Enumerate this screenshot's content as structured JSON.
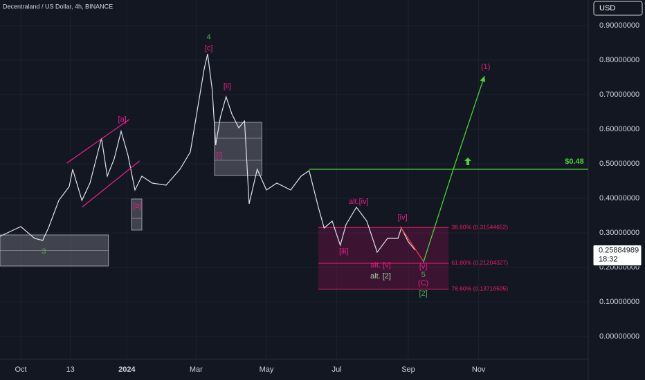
{
  "chart_data": {
    "type": "line",
    "title": "Decentraland / US Dollar, 4h, BINANCE",
    "currency": "USD",
    "last_price": {
      "value": 0.25884989,
      "label": "0.25884989"
    },
    "countdown": "18:32",
    "color": "#e0e3eb",
    "xlim": [
      -18,
      492
    ],
    "ylim": [
      -0.066,
      0.974
    ],
    "xticks": [
      {
        "value": 0,
        "label": "Oct"
      },
      {
        "value": 43,
        "label": "13"
      },
      {
        "value": 92,
        "label": "2024"
      },
      {
        "value": 152,
        "label": "Mar"
      },
      {
        "value": 213,
        "label": "May"
      },
      {
        "value": 274,
        "label": "Jul"
      },
      {
        "value": 336,
        "label": "Sep"
      },
      {
        "value": 397,
        "label": "Nov"
      }
    ],
    "yticks": [
      {
        "value": 0,
        "label": "0.00000000"
      },
      {
        "value": 0.1,
        "label": "0.10000000"
      },
      {
        "value": 0.2,
        "label": "0.20000000"
      },
      {
        "value": 0.3,
        "label": "0.30000000"
      },
      {
        "value": 0.4,
        "label": "0.40000000"
      },
      {
        "value": 0.5,
        "label": "0.50000000"
      },
      {
        "value": 0.6,
        "label": "0.60000000"
      },
      {
        "value": 0.7,
        "label": "0.70000000"
      },
      {
        "value": 0.8,
        "label": "0.80000000"
      },
      {
        "value": 0.9,
        "label": "0.90000000"
      }
    ],
    "series": [
      {
        "color": "#e0e3eb",
        "x": [
          -18,
          0,
          12,
          19,
          24,
          33,
          42,
          45,
          53,
          60,
          70,
          75,
          81,
          87,
          93,
          99,
          105,
          114,
          126,
          138,
          147,
          155,
          159,
          162,
          166,
          169,
          173,
          178,
          183,
          189,
          194,
          198,
          205,
          213,
          222,
          234,
          243,
          250,
          258,
          263,
          270,
          277,
          282,
          291,
          300,
          309,
          318,
          327,
          330,
          336,
          342
        ],
        "values": [
          0.29,
          0.318,
          0.284,
          0.278,
          0.314,
          0.394,
          0.434,
          0.484,
          0.394,
          0.444,
          0.574,
          0.464,
          0.514,
          0.594,
          0.524,
          0.424,
          0.464,
          0.444,
          0.438,
          0.484,
          0.534,
          0.694,
          0.774,
          0.818,
          0.714,
          0.554,
          0.634,
          0.694,
          0.644,
          0.604,
          0.624,
          0.384,
          0.484,
          0.424,
          0.444,
          0.424,
          0.464,
          0.48,
          0.374,
          0.314,
          0.334,
          0.264,
          0.324,
          0.374,
          0.334,
          0.244,
          0.284,
          0.284,
          0.314,
          0.274,
          0.25
        ]
      }
    ],
    "fib_range": [
      258,
      371
    ],
    "fib_levels": [
      {
        "value": 0.31544652,
        "label": "38.60% (0.31544652)"
      },
      {
        "value": 0.21204327,
        "label": "61.80% (0.21204327)"
      },
      {
        "value": 0.13716505,
        "label": "78.60% (0.13716505)"
      }
    ],
    "zones": [
      {
        "x": [
          -18,
          76
        ],
        "y": [
          0.204,
          0.294
        ],
        "lines": [
          0.249
        ]
      },
      {
        "x": [
          168,
          209
        ],
        "y": [
          0.466,
          0.62
        ],
        "lines": [
          0.574,
          0.51
        ]
      },
      {
        "x": [
          96,
          105
        ],
        "y": [
          0.308,
          0.398
        ],
        "lines": [
          0.342
        ]
      }
    ],
    "lines": [
      {
        "color": "#e91e8c",
        "points": [
          [
            40,
            0.502
          ],
          [
            94,
            0.628
          ]
        ]
      },
      {
        "color": "#e91e8c",
        "points": [
          [
            53,
            0.374
          ],
          [
            103,
            0.508
          ]
        ]
      },
      {
        "color": "#f23645",
        "points": [
          [
            329,
            0.318
          ],
          [
            349,
            0.218
          ]
        ]
      },
      {
        "color": "#4cd137",
        "points": [
          [
            349,
            0.214
          ],
          [
            375,
            0.484
          ],
          [
            402,
            0.754
          ]
        ]
      },
      {
        "color": "#4cd137",
        "points": [
          [
            250,
            0.484
          ],
          [
            492,
            0.484
          ]
        ]
      }
    ],
    "annotations": [
      {
        "text": "4",
        "x": 163,
        "y": 0.866,
        "color": "#4caf50"
      },
      {
        "text": "[c]",
        "x": 163,
        "y": 0.834,
        "color": "#e91e8c"
      },
      {
        "text": "[a]",
        "x": 88,
        "y": 0.628,
        "color": "#e91e8c"
      },
      {
        "text": "[ii]",
        "x": 179,
        "y": 0.724,
        "color": "#e91e8c"
      },
      {
        "text": "[i]",
        "x": 172,
        "y": 0.524,
        "color": "#e91e8c"
      },
      {
        "text": "[b]",
        "x": 101,
        "y": 0.378,
        "color": "#e91e8c"
      },
      {
        "text": "3",
        "x": 20,
        "y": 0.246,
        "color": "#4caf50"
      },
      {
        "text": "alt.[iv]",
        "x": 293,
        "y": 0.39,
        "color": "#e91e8c"
      },
      {
        "text": "[iv]",
        "x": 331,
        "y": 0.344,
        "color": "#e91e8c"
      },
      {
        "text": "[iii]",
        "x": 280,
        "y": 0.246,
        "color": "#e91e8c"
      },
      {
        "text": "alt. [v]",
        "x": 312,
        "y": 0.206,
        "color": "#e91e8c"
      },
      {
        "text": "alt. [2]",
        "x": 312,
        "y": 0.174,
        "color": "#a5d6a7"
      },
      {
        "text": "[v]",
        "x": 349,
        "y": 0.202,
        "color": "#e91e8c"
      },
      {
        "text": "5",
        "x": 349,
        "y": 0.178,
        "color": "#4caf50"
      },
      {
        "text": "(C)",
        "x": 349,
        "y": 0.154,
        "color": "#e91e8c"
      },
      {
        "text": "[2]",
        "x": 349,
        "y": 0.124,
        "color": "#4caf50"
      },
      {
        "text": "(1)",
        "x": 403,
        "y": 0.78,
        "color": "#e91e8c"
      },
      {
        "text": "$0.48",
        "x": 480,
        "y": 0.506,
        "color": "#4cd137"
      }
    ]
  }
}
